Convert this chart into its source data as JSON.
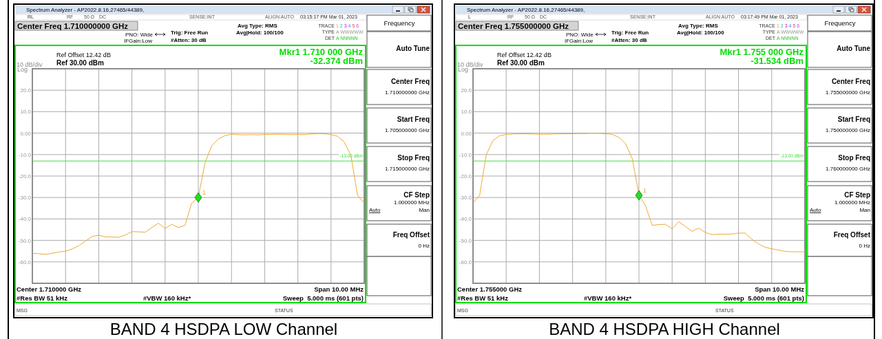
{
  "chart_data": [
    {
      "type": "line",
      "title": "BAND 4 HSDPA LOW Channel",
      "categories": [
        null,
        null,
        null,
        null,
        null,
        null,
        null,
        null,
        null,
        null,
        null,
        null,
        null,
        null,
        null,
        null,
        null,
        null,
        null,
        null,
        null,
        null,
        null,
        null,
        null,
        null,
        null,
        null,
        null,
        null,
        null,
        null,
        null,
        null,
        null,
        null,
        null,
        null,
        null,
        null,
        null,
        null,
        null,
        null,
        null,
        null,
        null,
        null,
        null,
        null,
        null
      ],
      "ylim": [
        -70,
        30
      ],
      "yticks": [
        {
          "value": 30,
          "label": null
        },
        {
          "value": 20,
          "label": "20.0"
        },
        {
          "value": 10,
          "label": "10.0"
        },
        {
          "value": 0,
          "label": "0.00"
        },
        {
          "value": -10,
          "label": "-10.0"
        },
        {
          "value": -20,
          "label": "-20.0"
        },
        {
          "value": -30,
          "label": "-30.0"
        },
        {
          "value": -40,
          "label": "-40.0"
        },
        {
          "value": -50,
          "label": "-50.0"
        },
        {
          "value": -60,
          "label": "-60.0"
        },
        {
          "value": -70,
          "label": null
        }
      ],
      "tick_labels": "y",
      "grid": true,
      "series": [
        {
          "color": "#f0a830",
          "values": [
            -56,
            -56.2,
            -56.5,
            -56,
            -55.4,
            -55,
            -54,
            -52.5,
            -50.3,
            -48.2,
            -47.5,
            -48.4,
            -48.4,
            -48.6,
            -47.5,
            -45.9,
            -46,
            -46.2,
            -44,
            -42,
            -44.5,
            -42.5,
            -44,
            -43,
            -32.6,
            -29.9,
            -14,
            -6,
            -2.8,
            -1.2,
            -0.5,
            -0.7,
            -0.8,
            -0.7,
            -0.8,
            -0.6,
            -0.6,
            -0.5,
            -0.6,
            -0.7,
            -0.6,
            -0.7,
            -0.4,
            -0.2,
            -0.3,
            -0.6,
            -1.5,
            -4.2,
            -10.5,
            -29,
            -32.6
          ]
        },
        {
          "type": "scatter",
          "marker": "diamond",
          "color": "#22dd22",
          "values": [
            null,
            null,
            null,
            null,
            null,
            null,
            null,
            null,
            null,
            null,
            null,
            null,
            null,
            null,
            null,
            null,
            null,
            null,
            null,
            null,
            null,
            null,
            null,
            null,
            null,
            -30,
            null,
            null,
            null,
            null,
            null,
            null,
            null,
            null,
            null,
            null,
            null,
            null,
            null,
            null,
            null,
            null,
            null,
            null,
            null,
            null,
            null,
            null,
            null,
            null,
            null
          ]
        }
      ],
      "ref_lines": [
        {
          "axis": "y",
          "value": -13,
          "label": "-13.00 dBm",
          "color": "#40e040"
        }
      ],
      "annotations": [
        "Spectrum Analyzer - AP2022.8.16,27465/44389,",
        "RL",
        "RF",
        "50 Ω",
        "DC",
        "SENSE:INT",
        "ALIGN AUTO",
        "03:15:17 PM Mar 01, 2023",
        "Center Freq 1.710000000 GHz",
        "PNO: Wide",
        "IFGain:Low",
        "Trig: Free Run",
        "#Atten: 30 dB",
        "Avg Type: RMS",
        "Avg|Hold: 100/100",
        "TRACE",
        "1 2 3 4 5 6",
        "TYPE",
        "A WWWWW",
        "DET",
        "A NNNNN",
        "Ref Offset 12.42 dB",
        "10 dB/div",
        "Ref 30.00 dBm",
        "Log",
        "Mkr1 1.710 000 GHz",
        "-32.374 dBm",
        "Center 1.710000 GHz",
        "Span 10.00 MHz",
        "#Res BW 51 kHz",
        "#VBW 160 kHz*",
        "Sweep  5.000 ms (601 pts)",
        "MSG",
        "STATUS",
        "Frequency",
        "Auto Tune",
        "Center Freq",
        "1.710000000 GHz",
        "Start Freq",
        "1.705000000 GHz",
        "Stop Freq",
        "1.715000000 GHz",
        "CF Step",
        "1.000000 MHz",
        "Auto",
        "Man",
        "Freq Offset",
        "0 Hz",
        "1"
      ]
    },
    {
      "type": "line",
      "title": "BAND 4 HSDPA HIGH Channel",
      "categories": [
        null,
        null,
        null,
        null,
        null,
        null,
        null,
        null,
        null,
        null,
        null,
        null,
        null,
        null,
        null,
        null,
        null,
        null,
        null,
        null,
        null,
        null,
        null,
        null,
        null,
        null,
        null,
        null,
        null,
        null,
        null,
        null,
        null,
        null,
        null,
        null,
        null,
        null,
        null,
        null,
        null,
        null,
        null,
        null,
        null,
        null,
        null,
        null,
        null,
        null,
        null
      ],
      "ylim": [
        -70,
        30
      ],
      "yticks": [
        {
          "value": 30,
          "label": null
        },
        {
          "value": 20,
          "label": "20.0"
        },
        {
          "value": 10,
          "label": "10.0"
        },
        {
          "value": 0,
          "label": "0.00"
        },
        {
          "value": -10,
          "label": "-10.0"
        },
        {
          "value": -20,
          "label": "-20.0"
        },
        {
          "value": -30,
          "label": "-30.0"
        },
        {
          "value": -40,
          "label": "-40.0"
        },
        {
          "value": -50,
          "label": "-50.0"
        },
        {
          "value": -60,
          "label": "-60.0"
        },
        {
          "value": -70,
          "label": null
        }
      ],
      "tick_labels": "y",
      "grid": true,
      "series": [
        {
          "color": "#f0a830",
          "values": [
            -32.6,
            -29,
            -10,
            -3.5,
            -1.2,
            -0.6,
            -0.4,
            -0.3,
            -0.3,
            -0.4,
            -0.5,
            -0.5,
            -0.4,
            -0.3,
            -0.3,
            -0.3,
            -0.2,
            -0.2,
            -0.1,
            -0.1,
            -0.3,
            -0.6,
            -2,
            -5,
            -12,
            -28.7,
            -34,
            -43,
            -42.6,
            -42.5,
            -44.6,
            -41.3,
            -43.5,
            -45.8,
            -44.3,
            -46.3,
            -47.3,
            -47.1,
            -47.1,
            -47,
            -46.6,
            -46.6,
            -49.4,
            -51.6,
            -53.2,
            -53.9,
            -54.5,
            -55.1,
            -55.3,
            -55.3,
            -55.3
          ]
        },
        {
          "type": "scatter",
          "marker": "diamond",
          "color": "#22dd22",
          "values": [
            null,
            null,
            null,
            null,
            null,
            null,
            null,
            null,
            null,
            null,
            null,
            null,
            null,
            null,
            null,
            null,
            null,
            null,
            null,
            null,
            null,
            null,
            null,
            null,
            null,
            -29,
            null,
            null,
            null,
            null,
            null,
            null,
            null,
            null,
            null,
            null,
            null,
            null,
            null,
            null,
            null,
            null,
            null,
            null,
            null,
            null,
            null,
            null,
            null,
            null,
            null
          ]
        }
      ],
      "ref_lines": [
        {
          "axis": "y",
          "value": -13,
          "label": "-13.00 dBm",
          "color": "#40e040"
        }
      ],
      "annotations": [
        "Spectrum Analyzer - AP2022.8.16,27465/44389,",
        "L",
        "RF",
        "50 Ω",
        "DC",
        "SENSE:INT",
        "ALIGN AUTO",
        "03:17:49 PM Mar 01, 2023",
        "Center Freq 1.755000000 GHz",
        "PNO: Wide",
        "IFGain:Low",
        "Trig: Free Run",
        "#Atten: 30 dB",
        "Avg Type: RMS",
        "Avg|Hold: 100/100",
        "TRACE",
        "1 2 3 4 5 6",
        "TYPE",
        "A WWWWW",
        "DET",
        "A NNNNN",
        "Ref Offset 12.42 dB",
        "10 dB/div",
        "Ref 30.00 dBm",
        "Log",
        "Mkr1 1.755 000 GHz",
        "-31.534 dBm",
        "Center 1.755000 GHz",
        "Span 10.00 MHz",
        "#Res BW 51 kHz",
        "#VBW 160 kHz*",
        "Sweep  5.000 ms (601 pts)",
        "MSG",
        "STATUS",
        "Frequency",
        "Auto Tune",
        "Center Freq",
        "1.755000000 GHz",
        "Start Freq",
        "1.750000000 GHz",
        "Stop Freq",
        "1.760000000 GHz",
        "CF Step",
        "1.000000 MHz",
        "Auto",
        "Man",
        "Freq Offset",
        "0 Hz",
        "1"
      ]
    }
  ]
}
